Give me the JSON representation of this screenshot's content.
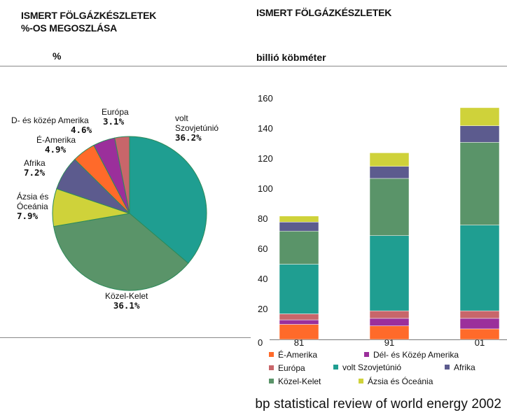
{
  "colors": {
    "e_amerika": "#ff6a2a",
    "del_kozep_amerika": "#9b2f9b",
    "europa": "#c8666a",
    "volt_szovjetunio": "#1f9e91",
    "afrika": "#5c5b8e",
    "kozel_kelet": "#5a9469",
    "azsia_oceania": "#cfd23a",
    "pie_outline": "#2c8a5a"
  },
  "left": {
    "title_line1": "ISMERT FÖLGÁZKÉSZLETEK",
    "title_line2": "%-OS MEGOSZLÁSA",
    "unit": "%"
  },
  "right": {
    "title": "ISMERT FÖLGÁZKÉSZLETEK",
    "unit": "billió köbméter"
  },
  "pie_labels": {
    "volt_szovjetunio": {
      "line1": "volt",
      "line2": "Szovjetúnió",
      "pct": "36.2%"
    },
    "kozel_kelet": {
      "line1": "Közel-Kelet",
      "pct": "36.1%"
    },
    "azsia": {
      "line1": "Ázsia és",
      "line2": "Óceánia",
      "pct": "7.9%"
    },
    "afrika": {
      "line1": "Afrika",
      "pct": "7.2%"
    },
    "e_amerika": {
      "line1": "É-Amerika",
      "pct": "4.9%"
    },
    "d_kozep": {
      "line1": "D- és közép Amerika",
      "pct": "4.6%"
    },
    "europa": {
      "line1": "Európa",
      "pct": "3.1%"
    }
  },
  "legend": {
    "e_amerika": "É-Amerika",
    "del_kozep": "Dél- és Közép Amerika",
    "europa": "Európa",
    "volt_szovjet": "volt Szovjetúnió",
    "afrika": "Afrika",
    "kozel_kelet": "Közel-Kelet",
    "azsia": "Ázsia és Óceánia"
  },
  "source": "bp statistical review of world energy 2002",
  "chart_data": [
    {
      "type": "pie",
      "title": "ISMERT FÖLGÁZKÉSZLETEK %-OS MEGOSZLÁSA",
      "unit": "%",
      "slices": [
        {
          "label": "volt Szovjetúnió",
          "value": 36.2,
          "color": "#1f9e91"
        },
        {
          "label": "Közel-Kelet",
          "value": 36.1,
          "color": "#5a9469"
        },
        {
          "label": "Ázsia és Óceánia",
          "value": 7.9,
          "color": "#cfd23a"
        },
        {
          "label": "Afrika",
          "value": 7.2,
          "color": "#5c5b8e"
        },
        {
          "label": "É-Amerika",
          "value": 4.9,
          "color": "#ff6a2a"
        },
        {
          "label": "D- és közép Amerika",
          "value": 4.6,
          "color": "#9b2f9b"
        },
        {
          "label": "Európa",
          "value": 3.1,
          "color": "#c8666a"
        }
      ]
    },
    {
      "type": "bar",
      "stacked": true,
      "title": "ISMERT FÖLGÁZKÉSZLETEK",
      "ylabel": "billió köbméter",
      "categories": [
        "81",
        "91",
        "01"
      ],
      "ylim": [
        0,
        160
      ],
      "yticks": [
        0,
        20,
        40,
        60,
        80,
        100,
        120,
        140,
        160
      ],
      "grid": false,
      "series": [
        {
          "name": "É-Amerika",
          "color": "#ff6a2a",
          "values": [
            10,
            9,
            7
          ]
        },
        {
          "name": "Dél- és Közép Amerika",
          "color": "#9b2f9b",
          "values": [
            3,
            5,
            7
          ]
        },
        {
          "name": "Európa",
          "color": "#c8666a",
          "values": [
            4,
            5,
            5
          ]
        },
        {
          "name": "volt Szovjetúnió",
          "color": "#1f9e91",
          "values": [
            33,
            50,
            57
          ]
        },
        {
          "name": "Közel-Kelet",
          "color": "#5a9469",
          "values": [
            22,
            38,
            55
          ]
        },
        {
          "name": "Afrika",
          "color": "#5c5b8e",
          "values": [
            6,
            8,
            11
          ]
        },
        {
          "name": "Ázsia és Óceánia",
          "color": "#cfd23a",
          "values": [
            4,
            9,
            12
          ]
        }
      ]
    }
  ]
}
